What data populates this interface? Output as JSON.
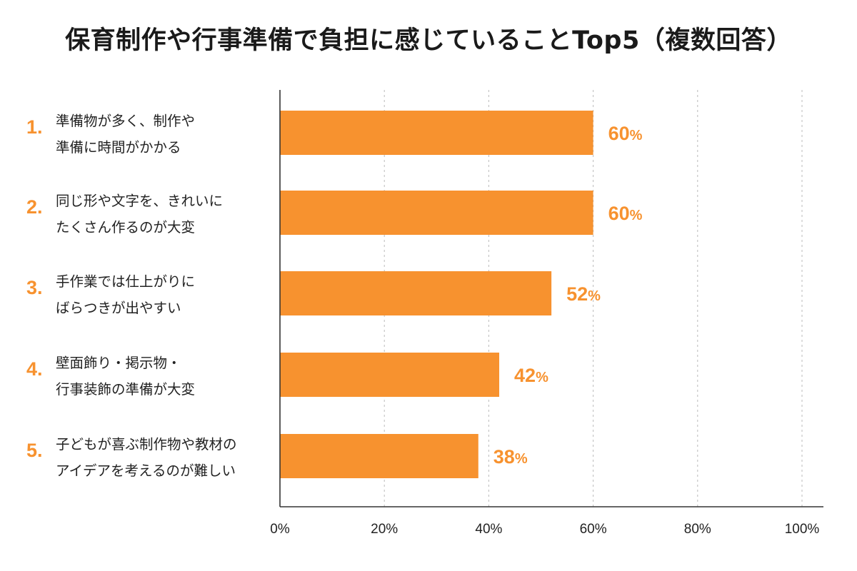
{
  "title": "保育制作や行事準備で負担に感じていることTop5（複数回答）",
  "colors": {
    "accent": "#F7922F",
    "text": "#222222",
    "grid": "#bbbbbb",
    "axis": "#333333"
  },
  "chart_data": {
    "type": "bar",
    "orientation": "horizontal",
    "title": "保育制作や行事準備で負担に感じていることTop5（複数回答）",
    "categories": [
      {
        "rank": "1.",
        "lines": [
          "準備物が多く、制作や",
          "準備に時間がかかる"
        ]
      },
      {
        "rank": "2.",
        "lines": [
          "同じ形や文字を、きれいに",
          "たくさん作るのが大変"
        ]
      },
      {
        "rank": "3.",
        "lines": [
          "手作業では仕上がりに",
          "ばらつきが出やすい"
        ]
      },
      {
        "rank": "4.",
        "lines": [
          "壁面飾り・掲示物・",
          "行事装飾の準備が大変"
        ]
      },
      {
        "rank": "5.",
        "lines": [
          "子どもが喜ぶ制作物や教材の",
          "アイデアを考えるのが難しい"
        ]
      }
    ],
    "values": [
      60,
      60,
      52,
      42,
      38
    ],
    "value_unit": "%",
    "xlim": [
      0,
      100
    ],
    "xticks": [
      0,
      20,
      40,
      60,
      80,
      100
    ],
    "xtick_labels": [
      "0%",
      "20%",
      "40%",
      "60%",
      "80%",
      "100%"
    ],
    "grid": "vertical dashed",
    "legend": "none"
  }
}
